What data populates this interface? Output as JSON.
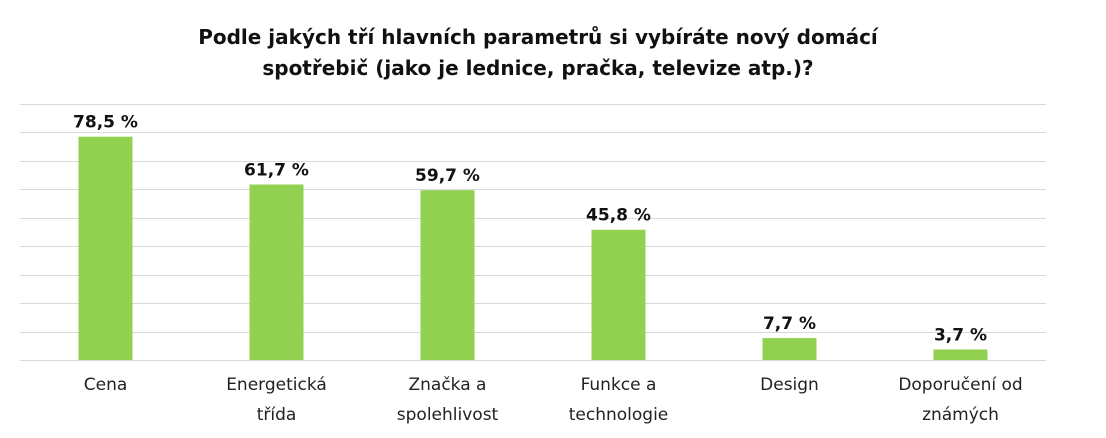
{
  "chart_data": {
    "type": "bar",
    "title_lines": [
      "Podle jakých tří hlavních parametrů si vybíráte nový domácí",
      "spotřebič (jako je lednice, pračka, televize atp.)?"
    ],
    "categories": [
      [
        "Cena"
      ],
      [
        "Energetická",
        "třída"
      ],
      [
        "Značka a",
        "spolehlivost"
      ],
      [
        "Funkce a",
        "technologie"
      ],
      [
        "Design"
      ],
      [
        "Doporučení od",
        "známých"
      ]
    ],
    "values": [
      78.5,
      61.7,
      59.7,
      45.8,
      7.7,
      3.7
    ],
    "value_labels": [
      "78,5 %",
      "61,7 %",
      "59,7 %",
      "45,8 %",
      "7,7 %",
      "3,7 %"
    ],
    "ylim": [
      0,
      90
    ],
    "grid": true,
    "bar_color": "#92d050",
    "legend": "none"
  }
}
